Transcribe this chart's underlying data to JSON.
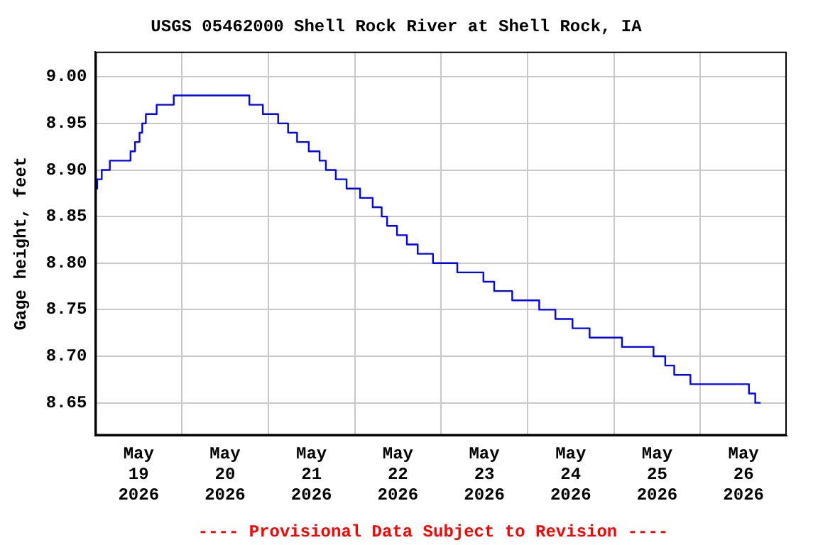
{
  "chart_data": {
    "type": "step",
    "title": "USGS 05462000 Shell Rock River at Shell Rock, IA",
    "ylabel": "Gage height, feet",
    "annotations": [
      "---- Provisional Data Subject to Revision ----"
    ],
    "x": [
      "2026-05-19T00:00",
      "2026-05-19T00:30",
      "2026-05-19T01:45",
      "2026-05-19T04:00",
      "2026-05-19T09:45",
      "2026-05-19T11:00",
      "2026-05-19T12:15",
      "2026-05-19T13:00",
      "2026-05-19T14:00",
      "2026-05-19T17:00",
      "2026-05-19T21:45",
      "2026-05-20T18:45",
      "2026-05-20T22:30",
      "2026-05-21T02:45",
      "2026-05-21T05:30",
      "2026-05-21T08:00",
      "2026-05-21T11:15",
      "2026-05-21T14:15",
      "2026-05-21T16:00",
      "2026-05-21T18:45",
      "2026-05-21T21:45",
      "2026-05-22T01:30",
      "2026-05-22T05:00",
      "2026-05-22T07:30",
      "2026-05-22T09:00",
      "2026-05-22T11:45",
      "2026-05-22T14:30",
      "2026-05-22T17:30",
      "2026-05-22T21:45",
      "2026-05-23T04:30",
      "2026-05-23T11:45",
      "2026-05-23T14:45",
      "2026-05-23T19:45",
      "2026-05-24T03:15",
      "2026-05-24T07:45",
      "2026-05-24T12:30",
      "2026-05-24T17:15",
      "2026-05-25T02:15",
      "2026-05-25T11:00",
      "2026-05-25T14:15",
      "2026-05-25T16:45",
      "2026-05-25T21:15",
      "2026-05-26T13:30",
      "2026-05-26T15:15",
      "2026-05-26T16:45"
    ],
    "series": [
      {
        "color": "#0000ff",
        "values": [
          8.88,
          8.89,
          8.9,
          8.91,
          8.92,
          8.93,
          8.94,
          8.95,
          8.96,
          8.97,
          8.98,
          8.97,
          8.96,
          8.95,
          8.94,
          8.93,
          8.92,
          8.91,
          8.9,
          8.89,
          8.88,
          8.87,
          8.86,
          8.85,
          8.84,
          8.83,
          8.82,
          8.81,
          8.8,
          8.79,
          8.78,
          8.77,
          8.76,
          8.75,
          8.74,
          8.73,
          8.72,
          8.71,
          8.7,
          8.69,
          8.68,
          8.67,
          8.66,
          8.65,
          8.65
        ]
      }
    ],
    "xlim": [
      "2026-05-19T00:00",
      "2026-05-27T00:00"
    ],
    "xticks": [
      {
        "value": "2026-05-19T12:00",
        "label": "May\n19\n2026"
      },
      {
        "value": "2026-05-20T00:00",
        "label": null
      },
      {
        "value": "2026-05-20T12:00",
        "label": "May\n20\n2026"
      },
      {
        "value": "2026-05-21T00:00",
        "label": null
      },
      {
        "value": "2026-05-21T12:00",
        "label": "May\n21\n2026"
      },
      {
        "value": "2026-05-22T00:00",
        "label": null
      },
      {
        "value": "2026-05-22T12:00",
        "label": "May\n22\n2026"
      },
      {
        "value": "2026-05-23T00:00",
        "label": null
      },
      {
        "value": "2026-05-23T12:00",
        "label": "May\n23\n2026"
      },
      {
        "value": "2026-05-24T00:00",
        "label": null
      },
      {
        "value": "2026-05-24T12:00",
        "label": "May\n24\n2026"
      },
      {
        "value": "2026-05-25T00:00",
        "label": null
      },
      {
        "value": "2026-05-25T12:00",
        "label": "May\n25\n2026"
      },
      {
        "value": "2026-05-26T00:00",
        "label": null
      },
      {
        "value": "2026-05-26T12:00",
        "label": "May\n26\n2026"
      }
    ],
    "ylim": [
      8.615,
      9.027
    ],
    "yticks": [
      {
        "value": 8.65,
        "label": "8.65"
      },
      {
        "value": 8.7,
        "label": "8.70"
      },
      {
        "value": 8.75,
        "label": "8.75"
      },
      {
        "value": 8.8,
        "label": "8.80"
      },
      {
        "value": 8.85,
        "label": "8.85"
      },
      {
        "value": 8.9,
        "label": "8.90"
      },
      {
        "value": 8.95,
        "label": "8.95"
      },
      {
        "value": 9,
        "label": "9.00"
      }
    ],
    "grid": true,
    "legend": false,
    "marker": "none",
    "line_style": "solid"
  }
}
